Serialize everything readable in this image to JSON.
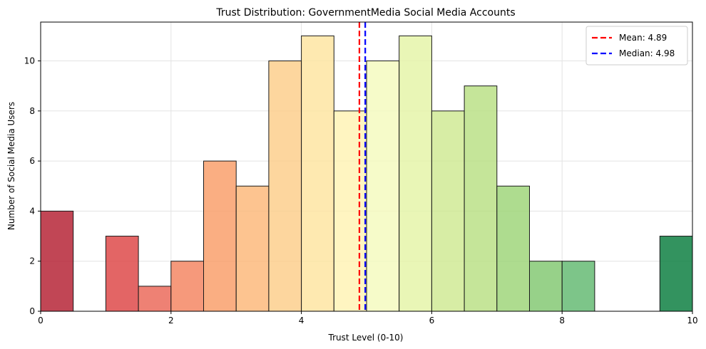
{
  "chart_data": {
    "type": "bar",
    "title": "Trust Distribution: GovernmentMedia Social Media Accounts",
    "xlabel": "Trust Level (0-10)",
    "ylabel": "Number of Social Media Users",
    "xlim": [
      0,
      10
    ],
    "ylim": [
      0,
      11.55
    ],
    "xticks": [
      0,
      2,
      4,
      6,
      8,
      10
    ],
    "yticks": [
      0,
      2,
      4,
      6,
      8,
      10
    ],
    "grid": true,
    "bin_width": 0.5,
    "bins": [
      {
        "x": 0.0,
        "count": 4,
        "color": "#b2182b"
      },
      {
        "x": 0.5,
        "count": 0,
        "color": "#c3273e"
      },
      {
        "x": 1.0,
        "count": 3,
        "color": "#dc3e3e"
      },
      {
        "x": 1.5,
        "count": 1,
        "color": "#ea6151"
      },
      {
        "x": 2.0,
        "count": 2,
        "color": "#f47f5a"
      },
      {
        "x": 2.5,
        "count": 6,
        "color": "#f99a63"
      },
      {
        "x": 3.0,
        "count": 5,
        "color": "#fcb574"
      },
      {
        "x": 3.5,
        "count": 10,
        "color": "#fdcc86"
      },
      {
        "x": 4.0,
        "count": 11,
        "color": "#fee49c"
      },
      {
        "x": 4.5,
        "count": 8,
        "color": "#fff3b2"
      },
      {
        "x": 5.0,
        "count": 10,
        "color": "#f4fabc"
      },
      {
        "x": 5.5,
        "count": 11,
        "color": "#e4f4a4"
      },
      {
        "x": 6.0,
        "count": 8,
        "color": "#cde98e"
      },
      {
        "x": 6.5,
        "count": 9,
        "color": "#b6df80"
      },
      {
        "x": 7.0,
        "count": 5,
        "color": "#9ad373"
      },
      {
        "x": 7.5,
        "count": 2,
        "color": "#7dc56b"
      },
      {
        "x": 8.0,
        "count": 2,
        "color": "#5cb66c"
      },
      {
        "x": 8.5,
        "count": 0,
        "color": "#3ea363"
      },
      {
        "x": 9.0,
        "count": 0,
        "color": "#228f58"
      },
      {
        "x": 9.5,
        "count": 3,
        "color": "#007837"
      }
    ],
    "lines": [
      {
        "label": "Mean: 4.89",
        "x": 4.89,
        "color": "#ff0000"
      },
      {
        "label": "Median: 4.98",
        "x": 4.98,
        "color": "#0000ff"
      }
    ],
    "legend_position": "top-right"
  }
}
